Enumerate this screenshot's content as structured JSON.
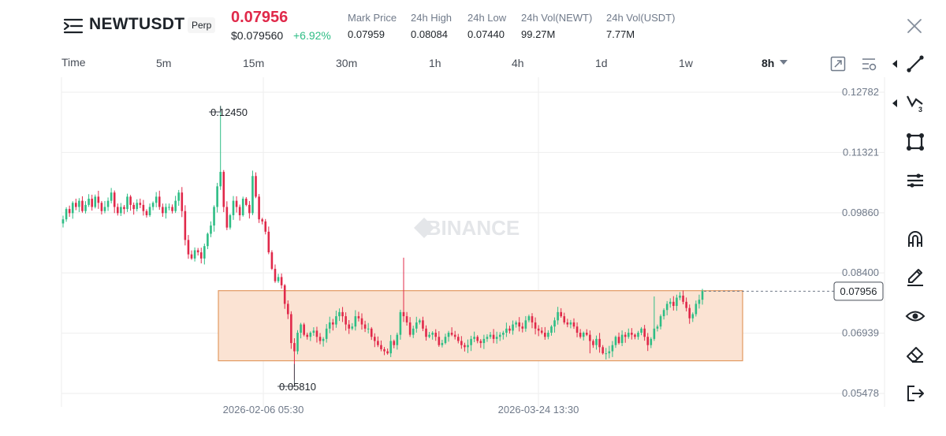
{
  "header": {
    "symbol": "NEWTUSDT",
    "contract_type": "Perp",
    "last_price": "0.07956",
    "usd_price": "$0.079560",
    "change_pct": "+6.92%",
    "stats": [
      {
        "label": "Mark Price",
        "value": "0.07959"
      },
      {
        "label": "24h High",
        "value": "0.08084"
      },
      {
        "label": "24h Low",
        "value": "0.07440"
      },
      {
        "label": "24h Vol(NEWT)",
        "value": "99.27M"
      },
      {
        "label": "24h Vol(USDT)",
        "value": "7.77M"
      }
    ]
  },
  "intervals": [
    "Time",
    "5m",
    "15m",
    "30m",
    "1h",
    "4h",
    "1d",
    "1w",
    "8h"
  ],
  "selected_interval": "8h",
  "colors": {
    "up": "#2ebd85",
    "down": "#e0294a",
    "range_fill": "#fbe3d3",
    "range_stroke": "#e39a62",
    "grid": "#eeeeee",
    "watermark": "#e4e6e9"
  },
  "icons": {
    "top_tools": [
      "expand-chart-icon",
      "indicator-settings-icon"
    ],
    "right_tools": [
      "trend-line-icon",
      "fibonacci-icon",
      "shape-icon",
      "horizontal-lines-icon",
      "magnet-icon",
      "pencil-icon",
      "eye-icon",
      "eraser-icon",
      "exit-icon"
    ]
  },
  "chart_data": {
    "type": "candlestick",
    "watermark": "BINANCE",
    "y_ticks": [
      "0.12782",
      "0.11321",
      "0.09860",
      "0.08400",
      "0.06939",
      "0.05478"
    ],
    "ylim": [
      0.05478,
      0.12782
    ],
    "x_ticks": [
      "2026-02-06 05:30",
      "2026-03-24 13:30"
    ],
    "current_price": "0.07956",
    "annotations": {
      "high": {
        "label": "0.12450",
        "value": 0.1245
      },
      "low": {
        "label": "0.05810",
        "value": 0.0581
      }
    },
    "range_box": {
      "top": 0.0797,
      "bottom": 0.0627
    },
    "candles_close": [
      0.097,
      0.0995,
      0.0985,
      0.101,
      0.1,
      0.1015,
      0.099,
      0.1005,
      0.102,
      0.1,
      0.1025,
      0.101,
      0.099,
      0.1,
      0.1015,
      0.1035,
      0.1,
      0.0985,
      0.1,
      0.0995,
      0.1025,
      0.1005,
      0.0995,
      0.101,
      0.1005,
      0.099,
      0.098,
      0.1,
      0.101,
      0.1025,
      0.1,
      0.0985,
      0.1,
      0.1,
      0.099,
      0.1015,
      0.1035,
      0.099,
      0.092,
      0.0885,
      0.0875,
      0.0895,
      0.089,
      0.0875,
      0.0905,
      0.0935,
      0.0955,
      0.1,
      0.105,
      0.1085,
      0.1,
      0.095,
      0.098,
      0.1015,
      0.1,
      0.098,
      0.102,
      0.1005,
      0.0985,
      0.1075,
      0.1025,
      0.097,
      0.0965,
      0.094,
      0.089,
      0.085,
      0.082,
      0.083,
      0.081,
      0.0765,
      0.074,
      0.067,
      0.065,
      0.0695,
      0.0715,
      0.069,
      0.0685,
      0.0695,
      0.07,
      0.0685,
      0.0675,
      0.068,
      0.0705,
      0.072,
      0.0715,
      0.0735,
      0.0745,
      0.0735,
      0.0715,
      0.0705,
      0.071,
      0.0735,
      0.073,
      0.0715,
      0.0705,
      0.0705,
      0.0685,
      0.0675,
      0.0665,
      0.0655,
      0.065,
      0.0645,
      0.0675,
      0.0665,
      0.069,
      0.0745,
      0.0735,
      0.072,
      0.069,
      0.0705,
      0.072,
      0.0725,
      0.0705,
      0.0685,
      0.069,
      0.0695,
      0.0685,
      0.0665,
      0.067,
      0.0685,
      0.0695,
      0.069,
      0.0685,
      0.0675,
      0.0665,
      0.066,
      0.0665,
      0.068,
      0.0685,
      0.0675,
      0.067,
      0.068,
      0.0685,
      0.069,
      0.068,
      0.0685,
      0.069,
      0.0695,
      0.0705,
      0.07,
      0.0715,
      0.072,
      0.071,
      0.0705,
      0.0725,
      0.0735,
      0.072,
      0.0705,
      0.07,
      0.0695,
      0.0685,
      0.0695,
      0.071,
      0.0725,
      0.0745,
      0.0735,
      0.072,
      0.0715,
      0.072,
      0.071,
      0.0695,
      0.0685,
      0.0695,
      0.069,
      0.0675,
      0.0665,
      0.068,
      0.066,
      0.0645,
      0.0645,
      0.065,
      0.0665,
      0.0685,
      0.067,
      0.069,
      0.0685,
      0.0695,
      0.069,
      0.0685,
      0.0695,
      0.0705,
      0.0685,
      0.0665,
      0.068,
      0.0705,
      0.071,
      0.0735,
      0.075,
      0.0765,
      0.077,
      0.076,
      0.078,
      0.0785,
      0.077,
      0.0755,
      0.073,
      0.074,
      0.0765,
      0.0775,
      0.0796
    ]
  }
}
